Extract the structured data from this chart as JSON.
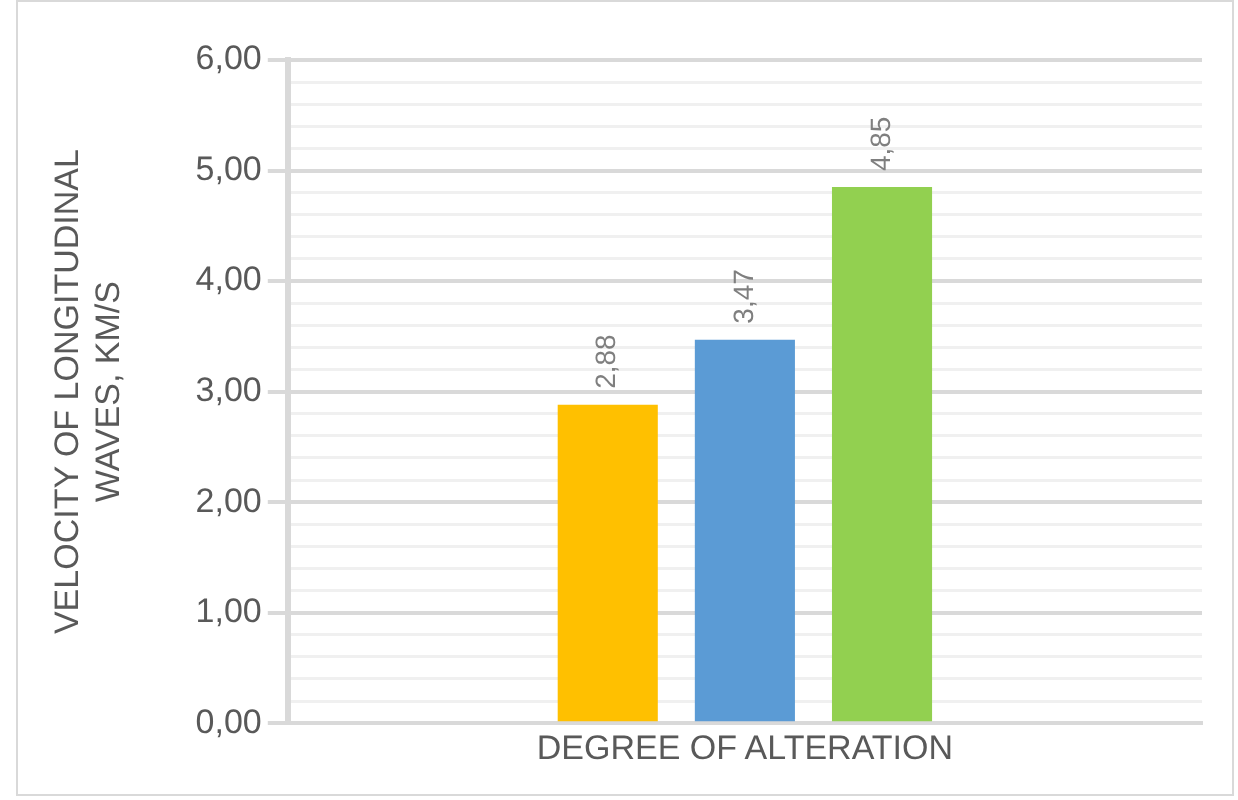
{
  "chart_data": {
    "type": "bar",
    "ylabel": "VELOCITY OF LONGITUDINAL WAVES, KM/S",
    "categories": [
      "DEGREE OF ALTERATION"
    ],
    "series": [
      {
        "color": "#ffc000",
        "values": [
          2.88
        ],
        "value_labels": [
          "2,88"
        ]
      },
      {
        "color": "#5b9bd5",
        "values": [
          3.47
        ],
        "value_labels": [
          "3,47"
        ]
      },
      {
        "color": "#92d050",
        "values": [
          4.85
        ],
        "value_labels": [
          "4,85"
        ]
      }
    ],
    "ylim": [
      0,
      6
    ],
    "yticks": [
      {
        "value": 0,
        "label": "0,00"
      },
      {
        "value": 0.2,
        "label": null
      },
      {
        "value": 0.4,
        "label": null
      },
      {
        "value": 0.6,
        "label": null
      },
      {
        "value": 0.8,
        "label": null
      },
      {
        "value": 1,
        "label": "1,00"
      },
      {
        "value": 1.2,
        "label": null
      },
      {
        "value": 1.4,
        "label": null
      },
      {
        "value": 1.6,
        "label": null
      },
      {
        "value": 1.8,
        "label": null
      },
      {
        "value": 2,
        "label": "2,00"
      },
      {
        "value": 2.2,
        "label": null
      },
      {
        "value": 2.4,
        "label": null
      },
      {
        "value": 2.6,
        "label": null
      },
      {
        "value": 2.8,
        "label": null
      },
      {
        "value": 3,
        "label": "3,00"
      },
      {
        "value": 3.2,
        "label": null
      },
      {
        "value": 3.4,
        "label": null
      },
      {
        "value": 3.6,
        "label": null
      },
      {
        "value": 3.8,
        "label": null
      },
      {
        "value": 4,
        "label": "4,00"
      },
      {
        "value": 4.2,
        "label": null
      },
      {
        "value": 4.4,
        "label": null
      },
      {
        "value": 4.6,
        "label": null
      },
      {
        "value": 4.8,
        "label": null
      },
      {
        "value": 5,
        "label": "5,00"
      },
      {
        "value": 5.2,
        "label": null
      },
      {
        "value": 5.4,
        "label": null
      },
      {
        "value": 5.6,
        "label": null
      },
      {
        "value": 5.8,
        "label": null
      },
      {
        "value": 6,
        "label": "6,00"
      }
    ],
    "grid": true
  }
}
